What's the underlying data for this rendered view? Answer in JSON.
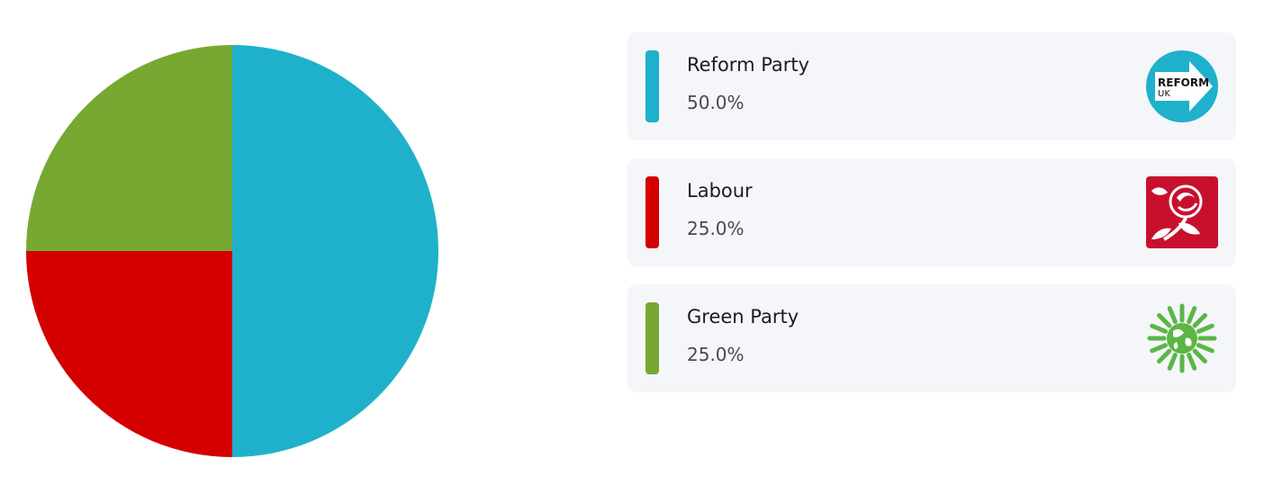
{
  "chart_data": {
    "type": "pie",
    "slices": [
      {
        "label": "Reform Party",
        "value": 50.0,
        "display": "50.0%",
        "color": "#1fb1cb",
        "logo_icon": "reform-uk-logo-icon",
        "logo_text": [
          "REFORM",
          "UK"
        ]
      },
      {
        "label": "Labour",
        "value": 25.0,
        "display": "25.0%",
        "color": "#d40000",
        "logo_icon": "labour-rose-logo-icon"
      },
      {
        "label": "Green Party",
        "value": 25.0,
        "display": "25.0%",
        "color": "#77a832",
        "logo_icon": "green-party-earth-logo-icon"
      }
    ],
    "start": "12 o'clock",
    "direction": "clockwise",
    "legend_position": "right"
  },
  "legend": {
    "items": [
      {
        "name": "Reform Party",
        "percent": "50.0%"
      },
      {
        "name": "Labour",
        "percent": "25.0%"
      },
      {
        "name": "Green Party",
        "percent": "25.0%"
      }
    ]
  }
}
